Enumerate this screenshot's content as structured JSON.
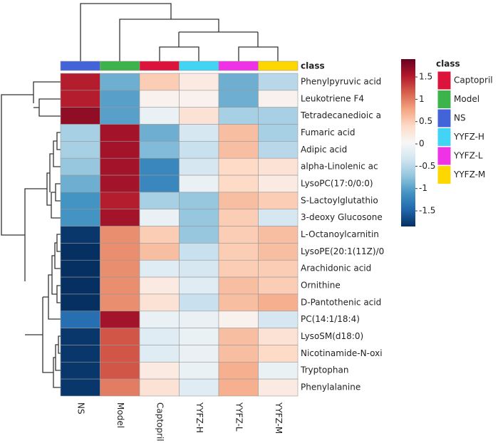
{
  "chart_data": {
    "type": "heatmap",
    "categories": [
      "NS",
      "Model",
      "Captopril",
      "YYFZ-H",
      "YYFZ-L",
      "YYFZ-M"
    ],
    "rows": [
      "Phenylpyruvic acid",
      "Leukotriene F4",
      "Tetradecanedioic a",
      "Fumaric acid",
      "Adipic acid",
      "alpha-Linolenic ac",
      "LysoPC(17:0/0:0)",
      "S-Lactoylglutathio",
      "3-deoxy Glucosone",
      "L-Octanoylcarnitin",
      "LysoPE(20:1(11Z)/0",
      "Arachidonic acid",
      "Ornithine",
      "D-Pantothenic acid",
      "PC(14:1/18:4)",
      "LysoSM(d18:0)",
      "Nicotinamide-N-oxi",
      "Tryptophan",
      "Phenylalanine"
    ],
    "values": [
      [
        1.5,
        -0.9,
        0.5,
        0.2,
        -0.9,
        -0.5
      ],
      [
        1.5,
        -1.0,
        0.1,
        0.1,
        -0.9,
        0.1
      ],
      [
        1.7,
        -1.0,
        -0.1,
        0.3,
        -0.6,
        -0.6
      ],
      [
        -0.6,
        1.6,
        -0.9,
        -0.3,
        0.6,
        -0.6
      ],
      [
        -0.6,
        1.6,
        -0.8,
        -0.4,
        0.6,
        -0.5
      ],
      [
        -0.7,
        1.6,
        -1.2,
        -0.3,
        0.4,
        0.3
      ],
      [
        -0.9,
        1.6,
        -1.2,
        -0.1,
        0.4,
        0.2
      ],
      [
        -1.1,
        1.5,
        -0.6,
        -0.7,
        0.6,
        0.5
      ],
      [
        -1.1,
        1.6,
        -0.1,
        -0.7,
        0.5,
        -0.3
      ],
      [
        -1.8,
        0.9,
        0.5,
        -0.7,
        0.5,
        0.6
      ],
      [
        -1.9,
        0.9,
        0.6,
        -0.4,
        0.5,
        0.6
      ],
      [
        -1.9,
        0.9,
        -0.2,
        -0.3,
        0.5,
        0.5
      ],
      [
        -1.9,
        0.9,
        0.2,
        -0.2,
        0.6,
        0.5
      ],
      [
        -1.9,
        0.9,
        0.3,
        -0.4,
        0.6,
        0.7
      ],
      [
        -1.4,
        1.6,
        -0.1,
        -0.1,
        0.1,
        -0.3
      ],
      [
        -1.8,
        1.2,
        -0.2,
        -0.1,
        0.6,
        0.3
      ],
      [
        -1.8,
        1.2,
        -0.2,
        -0.1,
        0.6,
        0.4
      ],
      [
        -1.8,
        1.2,
        0.2,
        -0.1,
        0.7,
        -0.1
      ],
      [
        -1.8,
        1.0,
        0.3,
        -0.2,
        0.7,
        0.2
      ]
    ],
    "zlim": [
      -1.85,
      1.9
    ],
    "zticks": [
      1.5,
      1,
      0.5,
      0,
      -0.5,
      -1,
      -1.5
    ],
    "colors": [
      "#053061",
      "#2166ac",
      "#4393c3",
      "#92c5de",
      "#d1e5f0",
      "#f7f7f7",
      "#fddbc7",
      "#f4a582",
      "#d6604d",
      "#b2182b",
      "#67001f"
    ],
    "class_title": "class",
    "classes": [
      {
        "name": "Captopril",
        "color": "#dc143c"
      },
      {
        "name": "Model",
        "color": "#3cb44b"
      },
      {
        "name": "NS",
        "color": "#4363d8"
      },
      {
        "name": "YYFZ-H",
        "color": "#42d4f4"
      },
      {
        "name": "YYFZ-L",
        "color": "#f032e6"
      },
      {
        "name": "YYFZ-M",
        "color": "#ffd700"
      }
    ]
  }
}
